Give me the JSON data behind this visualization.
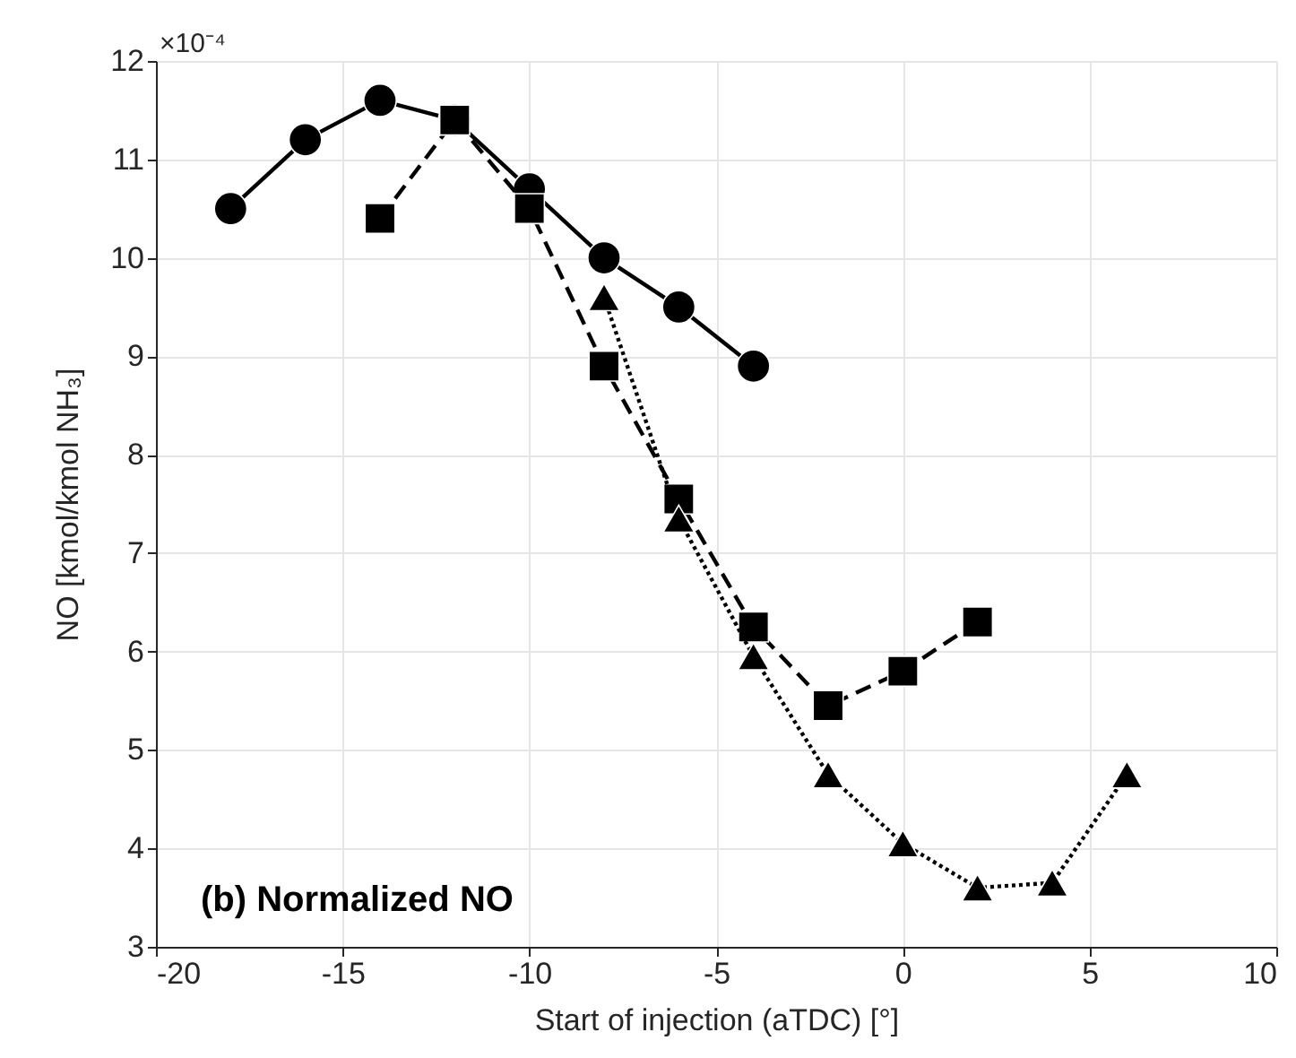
{
  "chart_data": {
    "type": "line",
    "xlabel": "Start of injection (aTDC) [°]",
    "ylabel": "NO [kmol/kmol NH₃]",
    "annotations": [
      "×10⁻⁴",
      "(b) Normalized NO"
    ],
    "xlim": [
      -20,
      10
    ],
    "xticks": [
      -20,
      -15,
      -10,
      -5,
      0,
      5,
      10
    ],
    "ylim": [
      3,
      12
    ],
    "yticks": [
      3,
      4,
      5,
      6,
      7,
      8,
      9,
      10,
      11,
      12
    ],
    "grid": true,
    "series": [
      {
        "color": "#000000",
        "marker": "circle",
        "line_style": "solid",
        "x": [
          -18,
          -16,
          -14,
          -12,
          -10,
          -8,
          -6,
          -4
        ],
        "values": [
          10.5,
          11.2,
          11.6,
          11.4,
          10.7,
          10.0,
          9.5,
          8.9
        ]
      },
      {
        "color": "#000000",
        "marker": "square",
        "line_style": "dashed",
        "x": [
          -14,
          -12,
          -10,
          -8,
          -6,
          -4,
          -2,
          0,
          2
        ],
        "values": [
          10.4,
          11.4,
          10.5,
          8.9,
          7.55,
          6.25,
          5.45,
          5.8,
          6.3
        ]
      },
      {
        "color": "#000000",
        "marker": "triangle",
        "line_style": "dotted",
        "x": [
          -8,
          -6,
          -4,
          -2,
          0,
          2,
          4,
          6
        ],
        "values": [
          9.6,
          7.35,
          5.95,
          4.75,
          4.05,
          3.6,
          3.65,
          4.75
        ]
      }
    ]
  }
}
